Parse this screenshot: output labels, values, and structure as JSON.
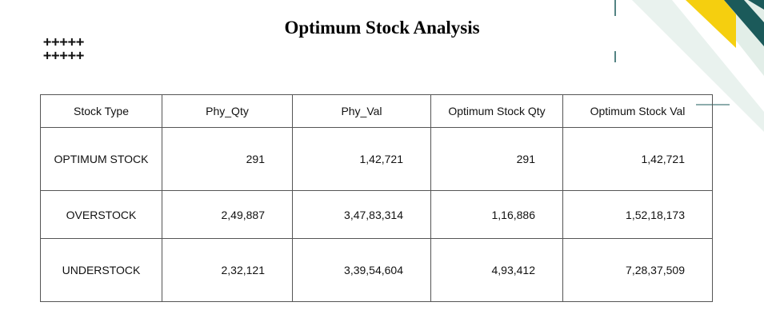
{
  "title": "Optimum Stock Analysis",
  "decor": {
    "plus_row_1": "+++++",
    "plus_row_2": "+++++"
  },
  "colors": {
    "accent_teal": "#1b5a5a",
    "accent_yellow": "#f5cf0f",
    "accent_mint": "#d6e7de"
  },
  "table": {
    "headers": [
      "Stock Type",
      "Phy_Qty",
      "Phy_Val",
      "Optimum Stock Qty",
      "Optimum Stock Val"
    ],
    "rows": [
      [
        "OPTIMUM STOCK",
        "291",
        "1,42,721",
        "291",
        "1,42,721"
      ],
      [
        "OVERSTOCK",
        "2,49,887",
        "3,47,83,314",
        "1,16,886",
        "1,52,18,173"
      ],
      [
        "UNDERSTOCK",
        "2,32,121",
        "3,39,54,604",
        "4,93,412",
        "7,28,37,509"
      ]
    ]
  }
}
